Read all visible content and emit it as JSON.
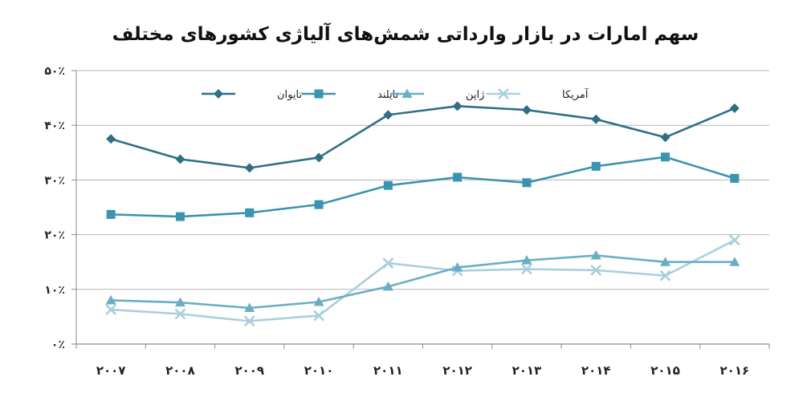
{
  "chart_data": {
    "type": "line",
    "title": "سهم امارات در بازار وارداتی شمش‌های آلیاژی کشورهای مختلف",
    "xlabel": "",
    "ylabel": "",
    "categories": [
      "۲۰۰۷",
      "۲۰۰۸",
      "۲۰۰۹",
      "۲۰۱۰",
      "۲۰۱۱",
      "۲۰۱۲",
      "۲۰۱۳",
      "۲۰۱۴",
      "۲۰۱۵",
      "۲۰۱۶"
    ],
    "y_ticks": [
      "۰٪",
      "۱۰٪",
      "۲۰٪",
      "۳۰٪",
      "۴۰٪",
      "۵۰٪"
    ],
    "ylim": [
      0,
      50
    ],
    "grid": true,
    "legend_position": "top",
    "series": [
      {
        "name": "تایوان",
        "marker": "diamond",
        "color": "#2e6f86",
        "values": [
          37.5,
          33.8,
          32.2,
          34.1,
          41.9,
          43.5,
          42.8,
          41.1,
          37.8,
          43.1
        ]
      },
      {
        "name": "تایلند",
        "marker": "square",
        "color": "#3a93b0",
        "values": [
          23.7,
          23.3,
          24.0,
          25.5,
          29.0,
          30.5,
          29.5,
          32.5,
          34.2,
          30.3
        ]
      },
      {
        "name": "ژاپن",
        "marker": "triangle",
        "color": "#6aaec3",
        "values": [
          8.0,
          7.6,
          6.6,
          7.7,
          10.5,
          14.0,
          15.3,
          16.2,
          15.0,
          15.0
        ]
      },
      {
        "name": "آمریکا",
        "marker": "x",
        "color": "#a9cfdb",
        "values": [
          6.3,
          5.5,
          4.2,
          5.2,
          14.8,
          13.4,
          13.7,
          13.5,
          12.5,
          19.0
        ]
      }
    ]
  }
}
